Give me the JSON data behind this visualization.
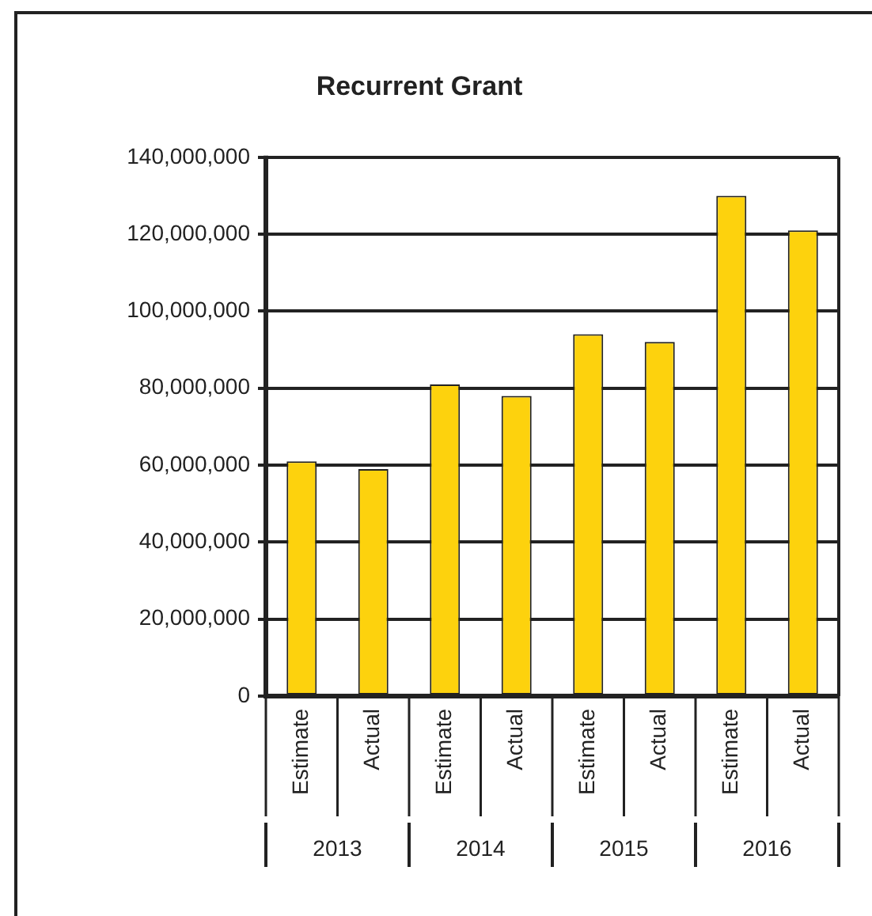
{
  "chart_data": {
    "type": "bar",
    "title": "Recurrent Grant",
    "categories": [
      "Estimate",
      "Actual",
      "Estimate",
      "Actual",
      "Estimate",
      "Actual",
      "Estimate",
      "Actual"
    ],
    "annotations": [
      "2013",
      "2014",
      "2015",
      "2016"
    ],
    "values": [
      61000000,
      59000000,
      81000000,
      78000000,
      94000000,
      92000000,
      130000000,
      121000000
    ],
    "color": "#fdd20d",
    "ylim": [
      0,
      140000000
    ],
    "yticks": [
      0,
      {
        "value": 20000000,
        "label": "20,000,000"
      },
      {
        "value": 40000000,
        "label": "40,000,000"
      },
      {
        "value": 60000000,
        "label": "60,000,000"
      },
      {
        "value": 80000000,
        "label": "80,000,000"
      },
      {
        "value": 100000000,
        "label": "100,000,000"
      },
      {
        "value": 120000000,
        "label": "120,000,000"
      },
      {
        "value": 140000000,
        "label": "140,000,000"
      }
    ],
    "grid": "y",
    "legend": false
  }
}
